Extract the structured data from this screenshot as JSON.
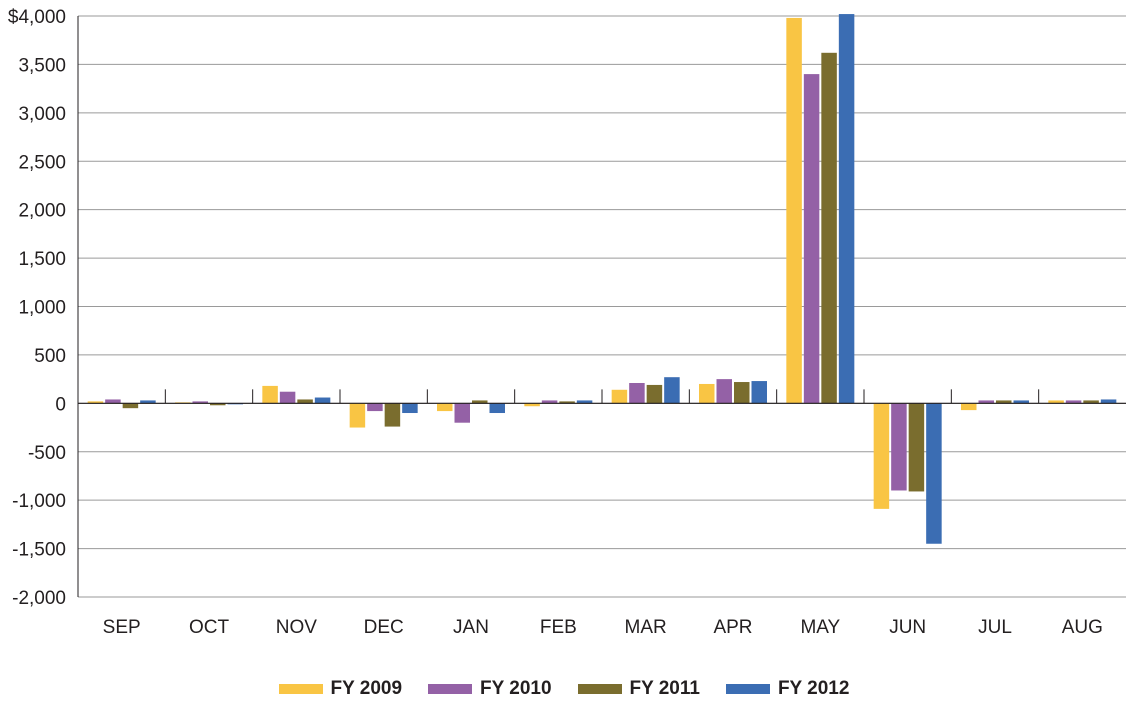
{
  "chart_data": {
    "type": "bar",
    "categories": [
      "SEP",
      "OCT",
      "NOV",
      "DEC",
      "JAN",
      "FEB",
      "MAR",
      "APR",
      "MAY",
      "JUN",
      "JUL",
      "AUG"
    ],
    "series": [
      {
        "name": "FY 2009",
        "color": "#f9c544",
        "values": [
          20,
          10,
          180,
          -250,
          -80,
          -30,
          140,
          200,
          3980,
          -1090,
          -70,
          30
        ]
      },
      {
        "name": "FY 2010",
        "color": "#9461a6",
        "values": [
          40,
          20,
          120,
          -80,
          -200,
          30,
          210,
          250,
          3400,
          -900,
          30,
          30
        ]
      },
      {
        "name": "FY 2011",
        "color": "#7a6d2e",
        "values": [
          -50,
          -20,
          40,
          -240,
          30,
          20,
          190,
          220,
          3620,
          -910,
          30,
          30
        ]
      },
      {
        "name": "FY 2012",
        "color": "#3b6db3",
        "values": [
          30,
          0,
          60,
          -100,
          -100,
          30,
          270,
          230,
          4020,
          -1450,
          30,
          40
        ]
      }
    ],
    "y_ticks": [
      "$4,000",
      "3,500",
      "3,000",
      "2,500",
      "2,000",
      "1,500",
      "1,000",
      "500",
      "0",
      "-500",
      "-1,000",
      "-1,500",
      "-2,000"
    ],
    "ylim": [
      -2000,
      4000
    ],
    "grid": true,
    "legend_position": "bottom"
  }
}
